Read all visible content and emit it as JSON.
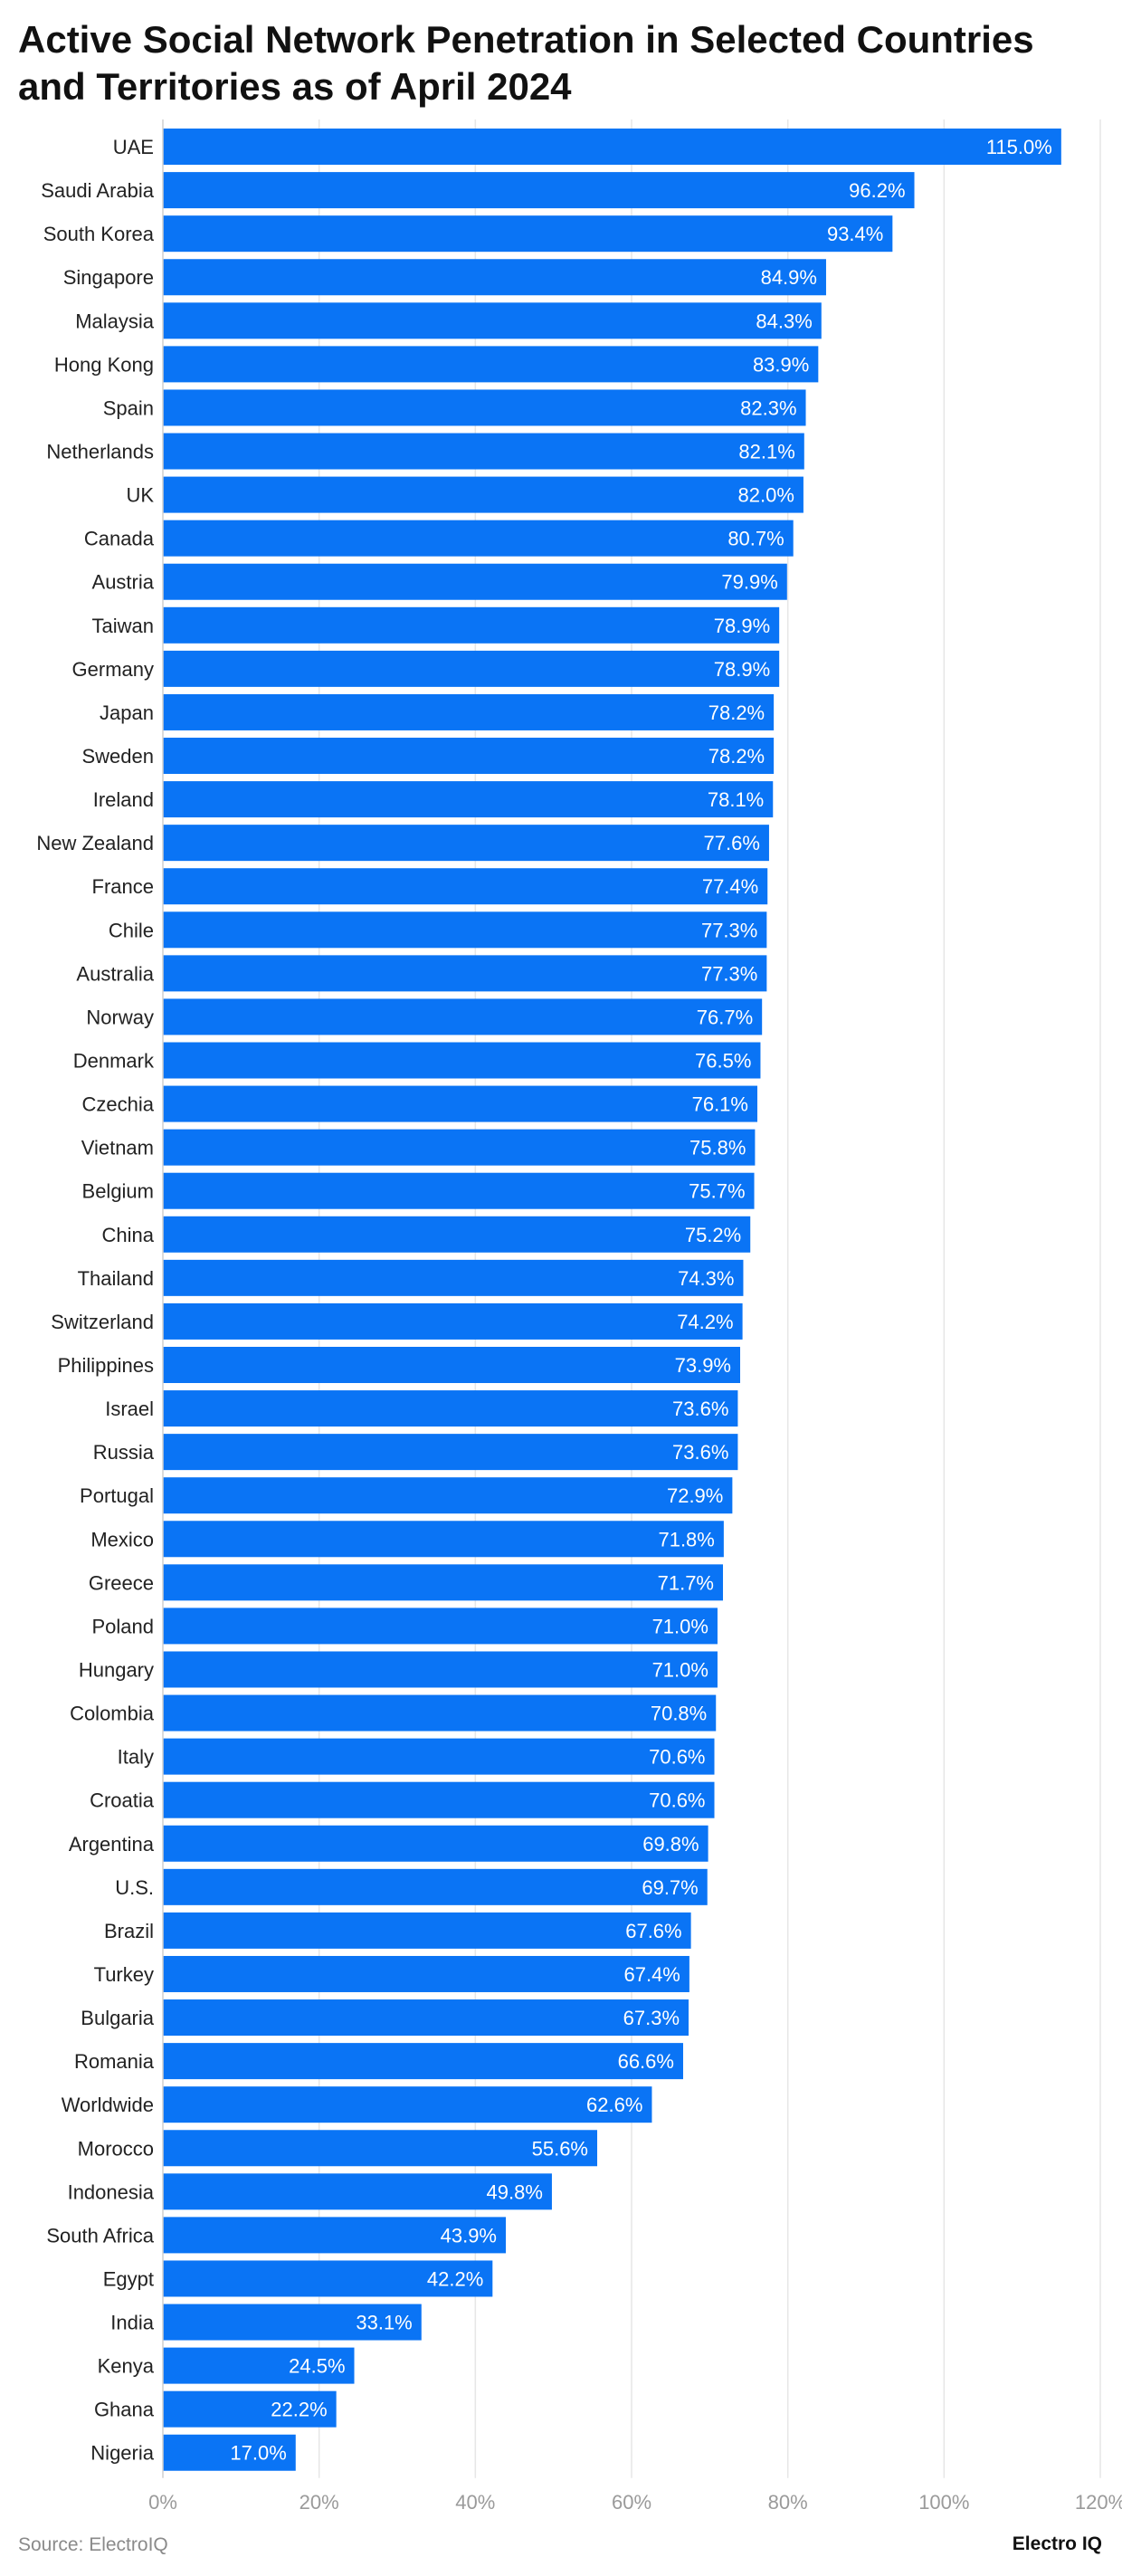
{
  "chart_data": {
    "type": "bar",
    "orientation": "horizontal",
    "title": "Active Social Network Penetration in Selected Countries and Territories as of April 2024",
    "categories": [
      "UAE",
      "Saudi Arabia",
      "South Korea",
      "Singapore",
      "Malaysia",
      "Hong Kong",
      "Spain",
      "Netherlands",
      "UK",
      "Canada",
      "Austria",
      "Taiwan",
      "Germany",
      "Japan",
      "Sweden",
      "Ireland",
      "New Zealand",
      "France",
      "Chile",
      "Australia",
      "Norway",
      "Denmark",
      "Czechia",
      "Vietnam",
      "Belgium",
      "China",
      "Thailand",
      "Switzerland",
      "Philippines",
      "Israel",
      "Russia",
      "Portugal",
      "Mexico",
      "Greece",
      "Poland",
      "Hungary",
      "Colombia",
      "Italy",
      "Croatia",
      "Argentina",
      "U.S.",
      "Brazil",
      "Turkey",
      "Bulgaria",
      "Romania",
      "Worldwide",
      "Morocco",
      "Indonesia",
      "South Africa",
      "Egypt",
      "India",
      "Kenya",
      "Ghana",
      "Nigeria"
    ],
    "values": [
      115.0,
      96.2,
      93.4,
      84.9,
      84.3,
      83.9,
      82.3,
      82.1,
      82.0,
      80.7,
      79.9,
      78.9,
      78.9,
      78.2,
      78.2,
      78.1,
      77.6,
      77.4,
      77.3,
      77.3,
      76.7,
      76.5,
      76.1,
      75.8,
      75.7,
      75.2,
      74.3,
      74.2,
      73.9,
      73.6,
      73.6,
      72.9,
      71.8,
      71.7,
      71.0,
      71.0,
      70.8,
      70.6,
      70.6,
      69.8,
      69.7,
      67.6,
      67.4,
      67.3,
      66.6,
      62.6,
      55.6,
      49.8,
      43.9,
      42.2,
      33.1,
      24.5,
      22.2,
      17.0
    ],
    "value_labels": [
      "115.0%",
      "96.2%",
      "93.4%",
      "84.9%",
      "84.3%",
      "83.9%",
      "82.3%",
      "82.1%",
      "82.0%",
      "80.7%",
      "79.9%",
      "78.9%",
      "78.9%",
      "78.2%",
      "78.2%",
      "78.1%",
      "77.6%",
      "77.4%",
      "77.3%",
      "77.3%",
      "76.7%",
      "76.5%",
      "76.1%",
      "75.8%",
      "75.7%",
      "75.2%",
      "74.3%",
      "74.2%",
      "73.9%",
      "73.6%",
      "73.6%",
      "72.9%",
      "71.8%",
      "71.7%",
      "71.0%",
      "71.0%",
      "70.8%",
      "70.6%",
      "70.6%",
      "69.8%",
      "69.7%",
      "67.6%",
      "67.4%",
      "67.3%",
      "66.6%",
      "62.6%",
      "55.6%",
      "49.8%",
      "43.9%",
      "42.2%",
      "33.1%",
      "24.5%",
      "22.2%",
      "17.0%"
    ],
    "xticks": [
      0,
      20,
      40,
      60,
      80,
      100,
      120
    ],
    "xtick_labels": [
      "0%",
      "20%",
      "40%",
      "60%",
      "80%",
      "100%",
      "120%"
    ],
    "xlim": [
      0,
      120
    ],
    "xlabel": "",
    "ylabel": "",
    "grid": "vertical",
    "legend": "none",
    "bar_color": "#0a74f5"
  },
  "footer": {
    "source": "Source: ElectroIQ",
    "brand": "Electro IQ"
  }
}
